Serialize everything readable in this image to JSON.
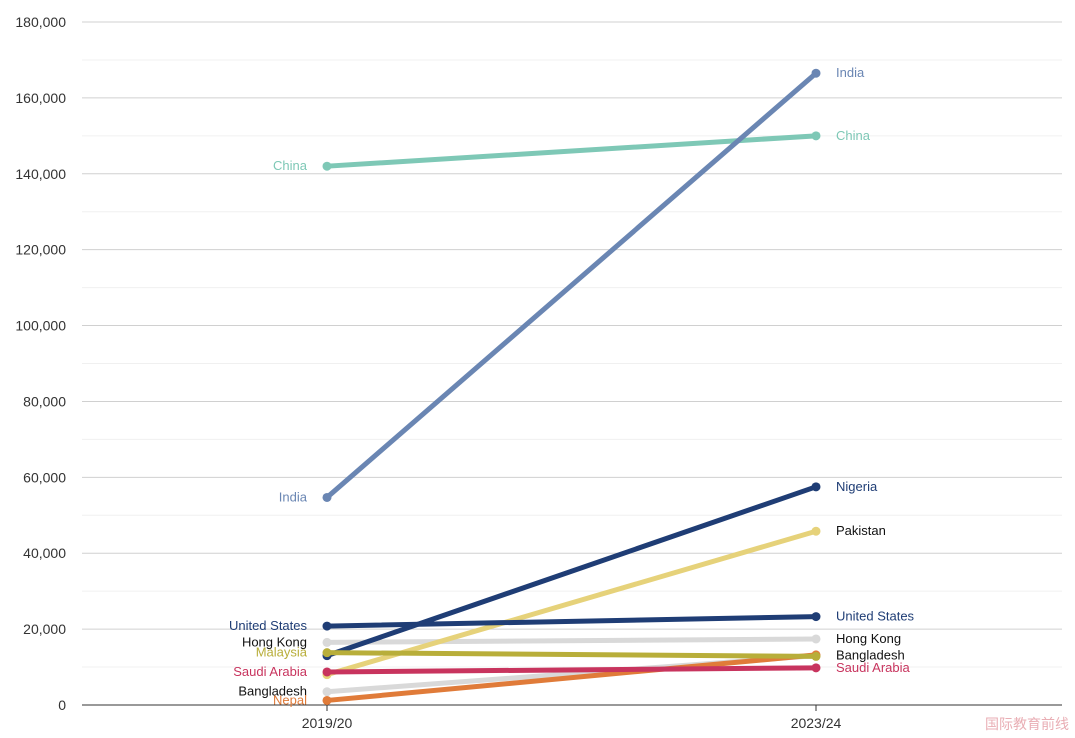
{
  "chart_data": {
    "type": "line",
    "x": [
      "2019/20",
      "2023/24"
    ],
    "ylim": [
      0,
      180000
    ],
    "yticks": [
      0,
      20000,
      40000,
      60000,
      80000,
      100000,
      120000,
      140000,
      160000,
      180000
    ],
    "ytick_labels": [
      "0",
      "20,000",
      "40,000",
      "60,000",
      "80,000",
      "100,000",
      "120,000",
      "140,000",
      "160,000",
      "180,000"
    ],
    "grid": true,
    "series": [
      {
        "name": "Bangladesh",
        "values": [
          3500,
          13000
        ],
        "color": "#d9d9d9",
        "label_left": "Bangladesh",
        "label_right": "Bangladesh",
        "label_color": "#111111"
      },
      {
        "name": "Nepal",
        "values": [
          1200,
          13200
        ],
        "color": "#e07b39",
        "label_left": "Nepal",
        "label_right": "",
        "label_color": "#e07b39"
      },
      {
        "name": "Hong Kong",
        "values": [
          16500,
          17400
        ],
        "color": "#d9d9d9",
        "label_left": "Hong Kong",
        "label_right": "Hong Kong",
        "label_color": "#111111"
      },
      {
        "name": "Pakistan",
        "values": [
          8000,
          45800
        ],
        "color": "#e6d27a",
        "label_left": "",
        "label_right": "Pakistan",
        "label_color": "#111111"
      },
      {
        "name": "Nigeria",
        "values": [
          13000,
          57500
        ],
        "color": "#1f3d75",
        "label_left": "",
        "label_right": "Nigeria",
        "label_color": "#1f3d75"
      },
      {
        "name": "United States",
        "values": [
          20800,
          23300
        ],
        "color": "#1f3d75",
        "label_left": "United States",
        "label_right": "United States",
        "label_color": "#1f3d75"
      },
      {
        "name": "Malaysia",
        "values": [
          13800,
          12800
        ],
        "color": "#b8ae3a",
        "label_left": "Malaysia",
        "label_right": "",
        "label_color": "#b8ae3a"
      },
      {
        "name": "Saudi Arabia",
        "values": [
          8700,
          9800
        ],
        "color": "#c8345e",
        "label_left": "Saudi Arabia",
        "label_right": "Saudi Arabia",
        "label_color": "#c8345e"
      },
      {
        "name": "China",
        "values": [
          142000,
          150000
        ],
        "color": "#7ec8b6",
        "label_left": "China",
        "label_right": "China",
        "label_color": "#7ec8b6"
      },
      {
        "name": "India",
        "values": [
          54700,
          166500
        ],
        "color": "#6a86b3",
        "label_left": "India",
        "label_right": "India",
        "label_color": "#6a86b3"
      }
    ]
  },
  "watermark": "国际教育前线"
}
